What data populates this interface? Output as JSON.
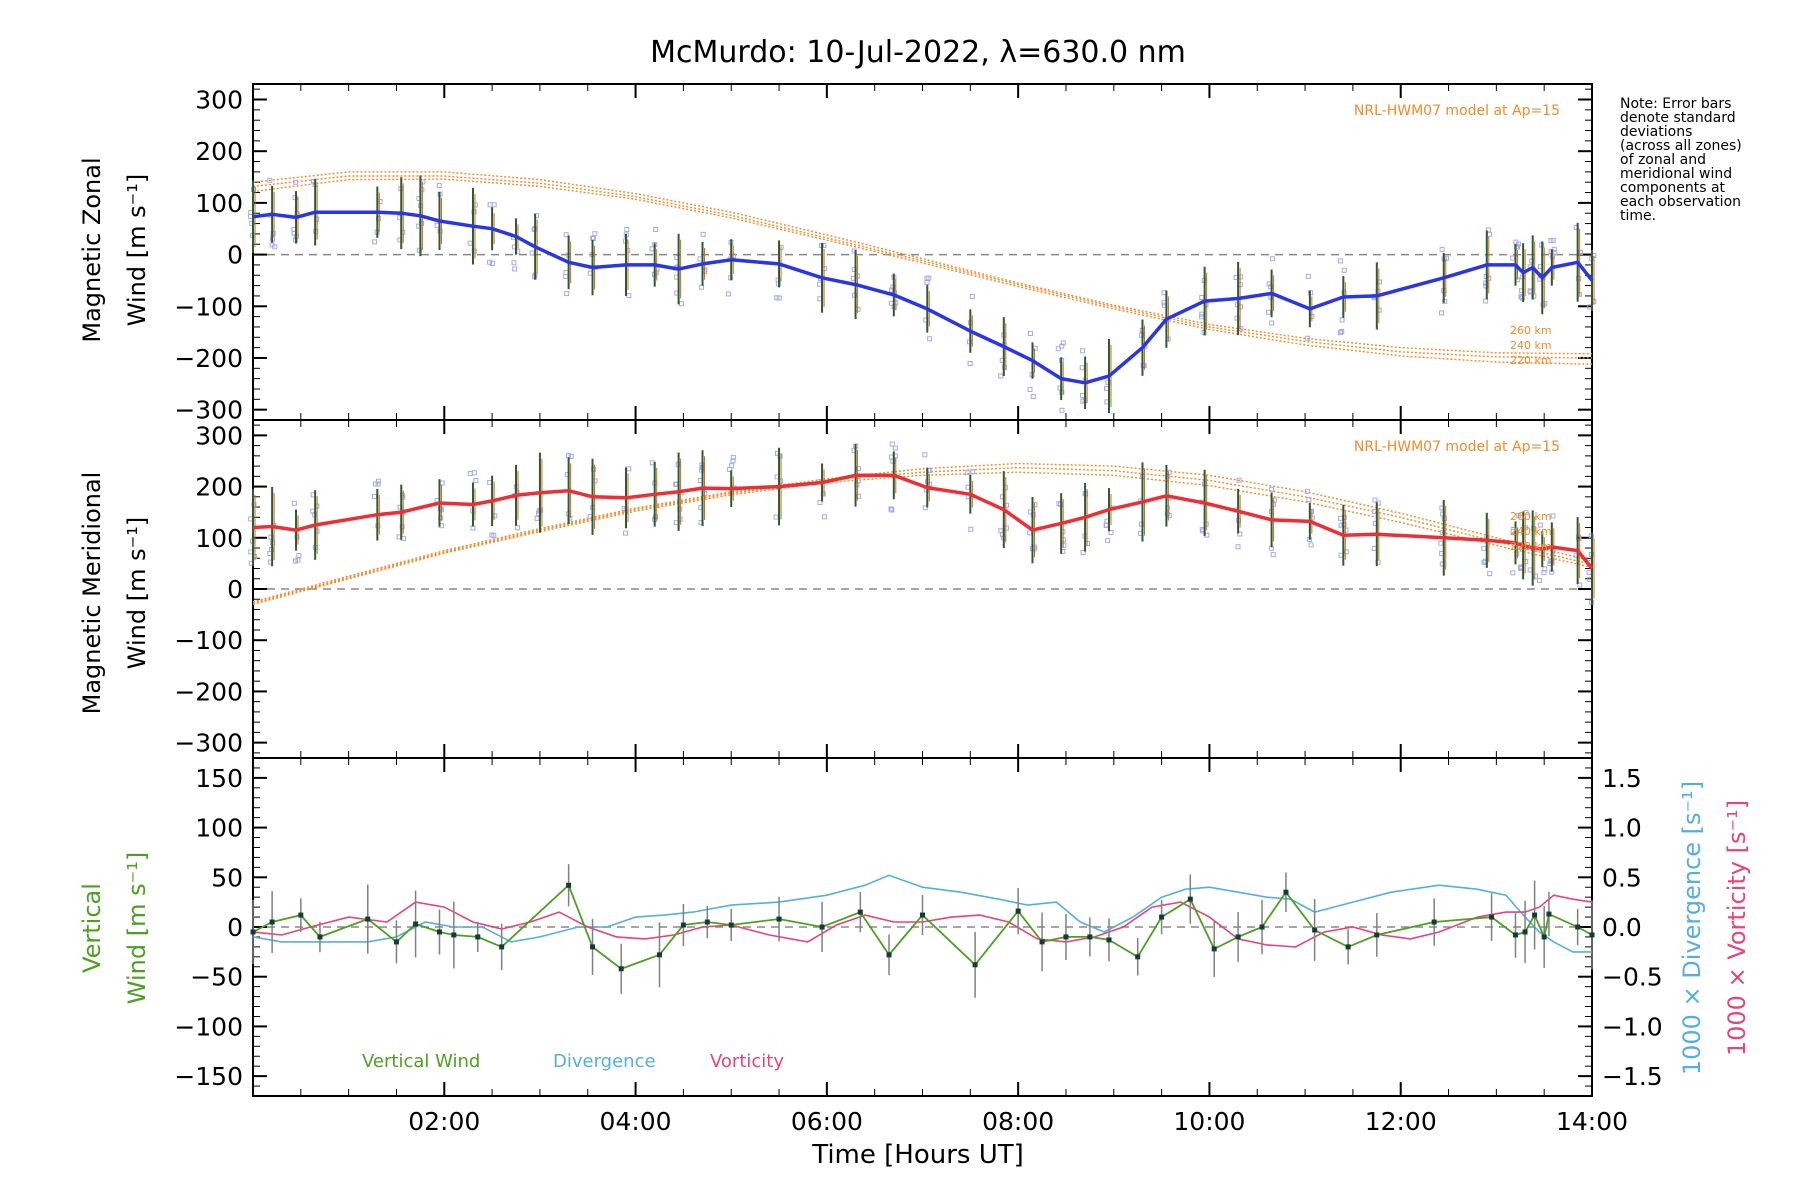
{
  "chart_data": [
    {
      "panel": "zonal",
      "type": "line",
      "title": "McMurdo: 10-Jul-2022, λ=630.0 nm",
      "ylabel": [
        "Magnetic Zonal",
        "Wind [m s⁻¹]"
      ],
      "ylim": [
        -320,
        330
      ],
      "yticks": [
        300,
        200,
        100,
        0,
        -100,
        -200,
        -300
      ],
      "x_hours": [
        0.0,
        0.2,
        0.45,
        0.65,
        1.3,
        1.55,
        1.75,
        1.95,
        2.3,
        2.5,
        2.75,
        2.95,
        3.3,
        3.55,
        3.9,
        4.2,
        4.45,
        4.7,
        5.0,
        5.5,
        5.95,
        6.3,
        6.7,
        7.05,
        7.5,
        7.85,
        8.15,
        8.45,
        8.7,
        8.95,
        9.3,
        9.55,
        9.95,
        10.3,
        10.65,
        11.05,
        11.4,
        11.75,
        12.45,
        12.9,
        13.2,
        13.28,
        13.38,
        13.48,
        13.58,
        13.85,
        14.0
      ],
      "values": [
        73,
        78,
        72,
        82,
        82,
        80,
        75,
        65,
        55,
        50,
        35,
        15,
        -15,
        -25,
        -20,
        -20,
        -28,
        -18,
        -10,
        -18,
        -45,
        -58,
        -78,
        -105,
        -148,
        -178,
        -205,
        -240,
        -248,
        -235,
        -180,
        -125,
        -90,
        -85,
        -75,
        -105,
        -82,
        -80,
        -45,
        -20,
        -20,
        -35,
        -25,
        -45,
        -25,
        -15,
        -50
      ],
      "model": {
        "label": "NRL-HWM07 model at Ap=15",
        "heights": [
          "260 km",
          "240 km",
          "220 km"
        ],
        "curves": [
          {
            "x": [
              0,
              1,
              2,
              3,
              4,
              5,
              6,
              7,
              8,
              9,
              10,
              11,
              12,
              13,
              14
            ],
            "values": [
              140,
              160,
              160,
              145,
              118,
              82,
              38,
              -8,
              -55,
              -98,
              -135,
              -162,
              -180,
              -190,
              -192
            ]
          },
          {
            "x": [
              0,
              1,
              2,
              3,
              4,
              5,
              6,
              7,
              8,
              9,
              10,
              11,
              12,
              13,
              14
            ],
            "values": [
              132,
              152,
              152,
              138,
              112,
              76,
              32,
              -12,
              -58,
              -101,
              -140,
              -168,
              -188,
              -198,
              -200
            ]
          },
          {
            "x": [
              0,
              1,
              2,
              3,
              4,
              5,
              6,
              7,
              8,
              9,
              10,
              11,
              12,
              13,
              14
            ],
            "values": [
              122,
              145,
              146,
              132,
              107,
              71,
              28,
              -16,
              -62,
              -105,
              -145,
              -175,
              -196,
              -208,
              -212
            ]
          }
        ]
      },
      "line_color": "#2a35e6"
    },
    {
      "panel": "meridional",
      "type": "line",
      "ylabel": [
        "Magnetic Meridional",
        "Wind [m s⁻¹]"
      ],
      "ylim": [
        -330,
        330
      ],
      "yticks": [
        300,
        200,
        100,
        0,
        -100,
        -200,
        -300
      ],
      "x_hours": [
        0.0,
        0.2,
        0.45,
        0.65,
        1.3,
        1.55,
        1.95,
        2.3,
        2.5,
        2.75,
        3.0,
        3.3,
        3.55,
        3.9,
        4.2,
        4.45,
        4.7,
        5.0,
        5.5,
        5.95,
        6.3,
        6.7,
        7.05,
        7.5,
        7.85,
        8.15,
        8.45,
        8.7,
        8.95,
        9.3,
        9.55,
        9.95,
        10.3,
        10.65,
        11.05,
        11.4,
        11.75,
        12.45,
        12.9,
        13.2,
        13.28,
        13.38,
        13.48,
        13.58,
        13.85,
        14.0
      ],
      "values": [
        120,
        122,
        115,
        125,
        145,
        150,
        168,
        165,
        172,
        183,
        188,
        192,
        180,
        178,
        185,
        190,
        197,
        196,
        200,
        208,
        222,
        222,
        198,
        185,
        155,
        115,
        128,
        140,
        155,
        170,
        182,
        168,
        152,
        135,
        132,
        105,
        107,
        100,
        95,
        90,
        85,
        80,
        78,
        82,
        75,
        40
      ],
      "model": {
        "label": "NRL-HWM07 model at Ap=15",
        "heights": [
          "260 km",
          "240 km",
          "220 km"
        ],
        "curves": [
          {
            "x": [
              0,
              1,
              2,
              3,
              4,
              5,
              6,
              7,
              8,
              9,
              10,
              11,
              12,
              13,
              14
            ],
            "values": [
              -25,
              25,
              75,
              118,
              158,
              190,
              215,
              235,
              245,
              240,
              222,
              190,
              148,
              100,
              55
            ]
          },
          {
            "x": [
              0,
              1,
              2,
              3,
              4,
              5,
              6,
              7,
              8,
              9,
              10,
              11,
              12,
              13,
              14
            ],
            "values": [
              -28,
              22,
              72,
              115,
              155,
              187,
              212,
              228,
              237,
              231,
              212,
              180,
              140,
              92,
              48
            ]
          },
          {
            "x": [
              0,
              1,
              2,
              3,
              4,
              5,
              6,
              7,
              8,
              9,
              10,
              11,
              12,
              13,
              14
            ],
            "values": [
              -30,
              20,
              70,
              112,
              152,
              184,
              208,
              222,
              228,
              222,
              202,
              170,
              130,
              85,
              42
            ]
          }
        ]
      },
      "line_color": "#ef2d35"
    },
    {
      "panel": "vertical",
      "type": "line",
      "ylabel": [
        "Vertical",
        "Wind [m s⁻¹]"
      ],
      "y2label_divergence": "1000 × Divergence [s⁻¹]",
      "y2label_vorticity": "1000 × Vorticity [s⁻¹]",
      "ylim": [
        -170,
        170
      ],
      "yticks": [
        150,
        100,
        50,
        0,
        -50,
        -100,
        -150
      ],
      "y2lim": [
        -1.7,
        1.7
      ],
      "y2ticks": [
        1.5,
        1.0,
        0.5,
        0.0,
        -0.5,
        -1.0,
        -1.5
      ],
      "xlabel": "Time [Hours UT]",
      "xticks": [
        "02:00",
        "04:00",
        "06:00",
        "08:00",
        "10:00",
        "12:00",
        "14:00"
      ],
      "xtick_hours": [
        2,
        4,
        6,
        8,
        10,
        12,
        14
      ],
      "xlim_hours": [
        0,
        14
      ],
      "series": [
        {
          "name": "Vertical Wind",
          "color": "#4da021",
          "x": [
            0.0,
            0.2,
            0.5,
            0.7,
            1.2,
            1.5,
            1.7,
            1.95,
            2.1,
            2.35,
            2.6,
            3.3,
            3.55,
            3.85,
            4.25,
            4.5,
            4.75,
            5.0,
            5.5,
            5.95,
            6.35,
            6.65,
            7.0,
            7.55,
            8.0,
            8.25,
            8.5,
            8.75,
            8.95,
            9.25,
            9.5,
            9.8,
            10.05,
            10.3,
            10.55,
            10.8,
            11.1,
            11.45,
            11.75,
            12.35,
            12.95,
            13.2,
            13.3,
            13.4,
            13.5,
            13.55,
            13.85,
            14.0
          ],
          "values": [
            -5,
            5,
            12,
            -10,
            8,
            -15,
            3,
            -5,
            -8,
            -10,
            -20,
            42,
            -20,
            -42,
            -28,
            2,
            5,
            2,
            8,
            0,
            15,
            -28,
            12,
            -38,
            16,
            -15,
            -10,
            -10,
            -13,
            -30,
            10,
            28,
            -22,
            -10,
            0,
            35,
            -3,
            -20,
            -8,
            5,
            10,
            -8,
            -5,
            12,
            -10,
            13,
            0,
            -8
          ]
        },
        {
          "name": "Divergence",
          "color": "#55aee0",
          "x": [
            0.0,
            0.3,
            0.7,
            1.2,
            1.5,
            1.8,
            2.1,
            2.4,
            2.7,
            3.0,
            3.4,
            3.7,
            4.0,
            4.3,
            4.6,
            5.0,
            5.5,
            6.0,
            6.4,
            6.65,
            7.0,
            7.4,
            7.8,
            8.1,
            8.4,
            8.65,
            8.9,
            9.2,
            9.5,
            9.75,
            10.0,
            10.3,
            10.6,
            10.85,
            11.1,
            11.5,
            11.9,
            12.4,
            12.8,
            13.1,
            13.3,
            13.45,
            13.6,
            13.8,
            14.0
          ],
          "values": [
            -0.1,
            -0.15,
            -0.15,
            -0.15,
            -0.1,
            0.05,
            0.0,
            0.0,
            -0.15,
            -0.1,
            0.0,
            0.0,
            0.1,
            0.12,
            0.15,
            0.22,
            0.25,
            0.32,
            0.42,
            0.52,
            0.4,
            0.35,
            0.28,
            0.22,
            0.25,
            0.05,
            -0.05,
            0.1,
            0.3,
            0.38,
            0.4,
            0.35,
            0.3,
            0.28,
            0.15,
            0.25,
            0.35,
            0.42,
            0.38,
            0.32,
            0.1,
            -0.05,
            -0.15,
            -0.25,
            -0.25
          ]
        },
        {
          "name": "Vorticity",
          "color": "#e8437a",
          "x": [
            0.0,
            0.3,
            0.6,
            1.0,
            1.4,
            1.7,
            2.0,
            2.3,
            2.6,
            2.9,
            3.2,
            3.5,
            3.8,
            4.1,
            4.4,
            4.7,
            5.0,
            5.4,
            5.8,
            6.1,
            6.4,
            6.7,
            7.0,
            7.3,
            7.6,
            7.9,
            8.2,
            8.5,
            8.8,
            9.1,
            9.4,
            9.7,
            10.0,
            10.3,
            10.6,
            10.9,
            11.2,
            11.5,
            11.8,
            12.1,
            12.4,
            12.8,
            13.1,
            13.3,
            13.45,
            13.6,
            13.8,
            14.0
          ],
          "values": [
            -0.05,
            -0.08,
            0.0,
            0.1,
            0.05,
            0.25,
            0.2,
            0.05,
            -0.02,
            0.05,
            0.15,
            0.0,
            -0.1,
            -0.12,
            -0.08,
            0.0,
            0.02,
            -0.08,
            -0.15,
            0.02,
            0.12,
            0.05,
            0.05,
            0.1,
            0.12,
            0.05,
            -0.12,
            -0.15,
            -0.1,
            0.0,
            0.2,
            0.25,
            0.1,
            -0.12,
            -0.18,
            -0.2,
            -0.05,
            0.0,
            -0.08,
            -0.12,
            -0.05,
            0.1,
            0.15,
            0.15,
            0.2,
            0.32,
            0.28,
            0.25
          ]
        }
      ],
      "legend": [
        "Vertical Wind",
        "Divergence",
        "Vorticity"
      ]
    }
  ],
  "note": [
    "Note: Error bars",
    "denote standard",
    "deviations",
    "(across all zones)",
    "of zonal and",
    "meridional wind",
    "components at",
    "each observation",
    "time."
  ],
  "colors": {
    "model": "#f08b2a",
    "error_bar": "#707070",
    "scatter": "#a8a8e8"
  }
}
